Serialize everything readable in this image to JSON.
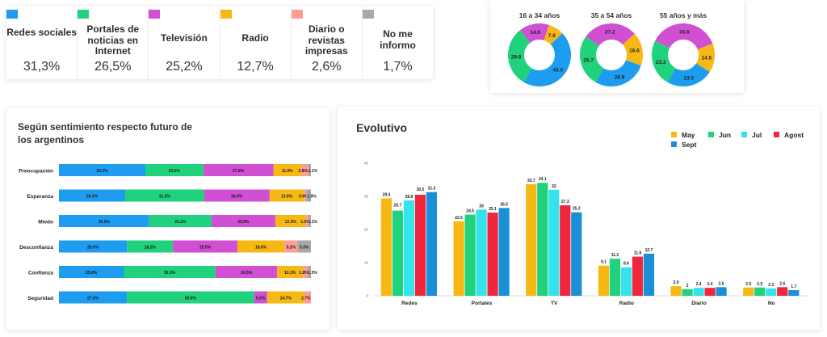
{
  "colors": {
    "redes": "#1e9cf0",
    "portales": "#1fd27b",
    "tv": "#d04fd3",
    "radio": "#f7b814",
    "diario": "#ff9c95",
    "nome": "#a8a8a8",
    "may": "#f7b814",
    "jun": "#1fd27b",
    "jul": "#35e3ec",
    "agost": "#f0263f",
    "sept": "#1b8fd6"
  },
  "sources": [
    {
      "label": "Redes sociales",
      "pct": "31,3%",
      "color": "#1e9cf0"
    },
    {
      "label": "Portales de noticias en Internet",
      "pct": "26,5%",
      "color": "#1fd27b"
    },
    {
      "label": "Televisión",
      "pct": "25,2%",
      "color": "#d04fd3"
    },
    {
      "label": "Radio",
      "pct": "12,7%",
      "color": "#f7b814"
    },
    {
      "label": "Diario o revistas impresas",
      "pct": "2,6%",
      "color": "#ff9c95"
    },
    {
      "label": "No me informo",
      "pct": "1,7%",
      "color": "#a8a8a8"
    }
  ],
  "bars_title": "Según sentimiento respecto futuro de los argentinos",
  "evo_title": "Evolutivo",
  "chart_data": [
    {
      "type": "pie",
      "subtype": "donut",
      "categories": [
        "Redes",
        "Radio",
        "Televisión",
        "Portales"
      ],
      "groups": [
        {
          "title": "16 a 34 años",
          "values": [
            43.5,
            7.8,
            14.6,
            29.9
          ]
        },
        {
          "title": "35 a 54 años",
          "values": [
            26.9,
            16.6,
            27.2,
            25.7
          ]
        },
        {
          "title": "55 años y más",
          "values": [
            23.5,
            14.5,
            35.6,
            23.3
          ]
        }
      ]
    },
    {
      "type": "bar",
      "orientation": "horizontal-stacked",
      "title": "Según sentimiento respecto futuro de los argentinos",
      "categories": [
        "Preocupación",
        "Esperanza",
        "Miedo",
        "Desconfianza",
        "Confianza",
        "Seguridad"
      ],
      "series": [
        {
          "name": "Redes sociales",
          "values": [
            34.3,
            26.3,
            36.5,
            26.9,
            25.8,
            27.0
          ]
        },
        {
          "name": "Portales de noticias en Internet",
          "values": [
            23.0,
            31.3,
            25.2,
            18.2,
            36.3,
            50.6
          ]
        },
        {
          "name": "Televisión",
          "values": [
            27.8,
            26.0,
            25.8,
            25.5,
            24.5,
            5.2
          ]
        },
        {
          "name": "Radio",
          "values": [
            11.0,
            13.6,
            12.3,
            18.6,
            10.3,
            14.7
          ]
        },
        {
          "name": "Diario o revistas impresas",
          "values": [
            2.8,
            0.9,
            1.0,
            5.2,
            1.8,
            2.7
          ]
        },
        {
          "name": "No me informo",
          "values": [
            1.1,
            1.9,
            1.1,
            5.3,
            1.3,
            0
          ]
        }
      ],
      "labels": [
        [
          "34.3%",
          "23.0%",
          "27.8%",
          "11.0%",
          "2.8%",
          "1.1%"
        ],
        [
          "26.3%",
          "31.3%",
          "26.0%",
          "13.6%",
          "0.9%",
          "1.9%"
        ],
        [
          "36.5%",
          "25.2%",
          "25.8%",
          "12.3%",
          "1.0%",
          "1.1%"
        ],
        [
          "26.9%",
          "18.2%",
          "25.5%",
          "18.6%",
          "5.2%",
          "5.3%"
        ],
        [
          "25.8%",
          "36.3%",
          "24.5%",
          "10.3%",
          "1.8%",
          "1.3%"
        ],
        [
          "27.0%",
          "50.6%",
          "5.2%",
          "14.7%",
          "2.7%",
          ""
        ]
      ]
    },
    {
      "type": "bar",
      "title": "Evolutivo",
      "categories": [
        "Redes",
        "Portales",
        "TV",
        "Radio",
        "Diario",
        "No"
      ],
      "series": [
        {
          "name": "May",
          "values": [
            29.4,
            22.5,
            33.7,
            9.1,
            2.9,
            2.5
          ]
        },
        {
          "name": "Jun",
          "values": [
            25.7,
            24.5,
            34.1,
            11.2,
            2.0,
            2.5
          ]
        },
        {
          "name": "Jul",
          "values": [
            28.8,
            26.0,
            32.0,
            8.6,
            2.4,
            2.2
          ]
        },
        {
          "name": "Agost",
          "values": [
            30.5,
            25.1,
            27.3,
            11.8,
            2.4,
            2.6
          ]
        },
        {
          "name": "Sept",
          "values": [
            31.3,
            26.5,
            25.2,
            12.7,
            2.6,
            1.7
          ]
        }
      ],
      "labels": [
        [
          "29.4",
          "25.7",
          "28.8",
          "30.5",
          "31.3"
        ],
        [
          "22.5",
          "24.5",
          "26",
          "25.1",
          "26.5"
        ],
        [
          "33.7",
          "34.1",
          "32",
          "27.3",
          "25.2"
        ],
        [
          "9.1",
          "11.2",
          "8.6",
          "11.8",
          "12.7"
        ],
        [
          "2.9",
          "2",
          "2.4",
          "2.4",
          "2.6"
        ],
        [
          "2.5",
          "2.5",
          "2.2",
          "2.6",
          "1.7"
        ]
      ],
      "ylim": [
        0,
        40
      ],
      "yticks": [
        "0",
        "10",
        "20",
        "30",
        "40"
      ],
      "legend": "top-right"
    }
  ]
}
